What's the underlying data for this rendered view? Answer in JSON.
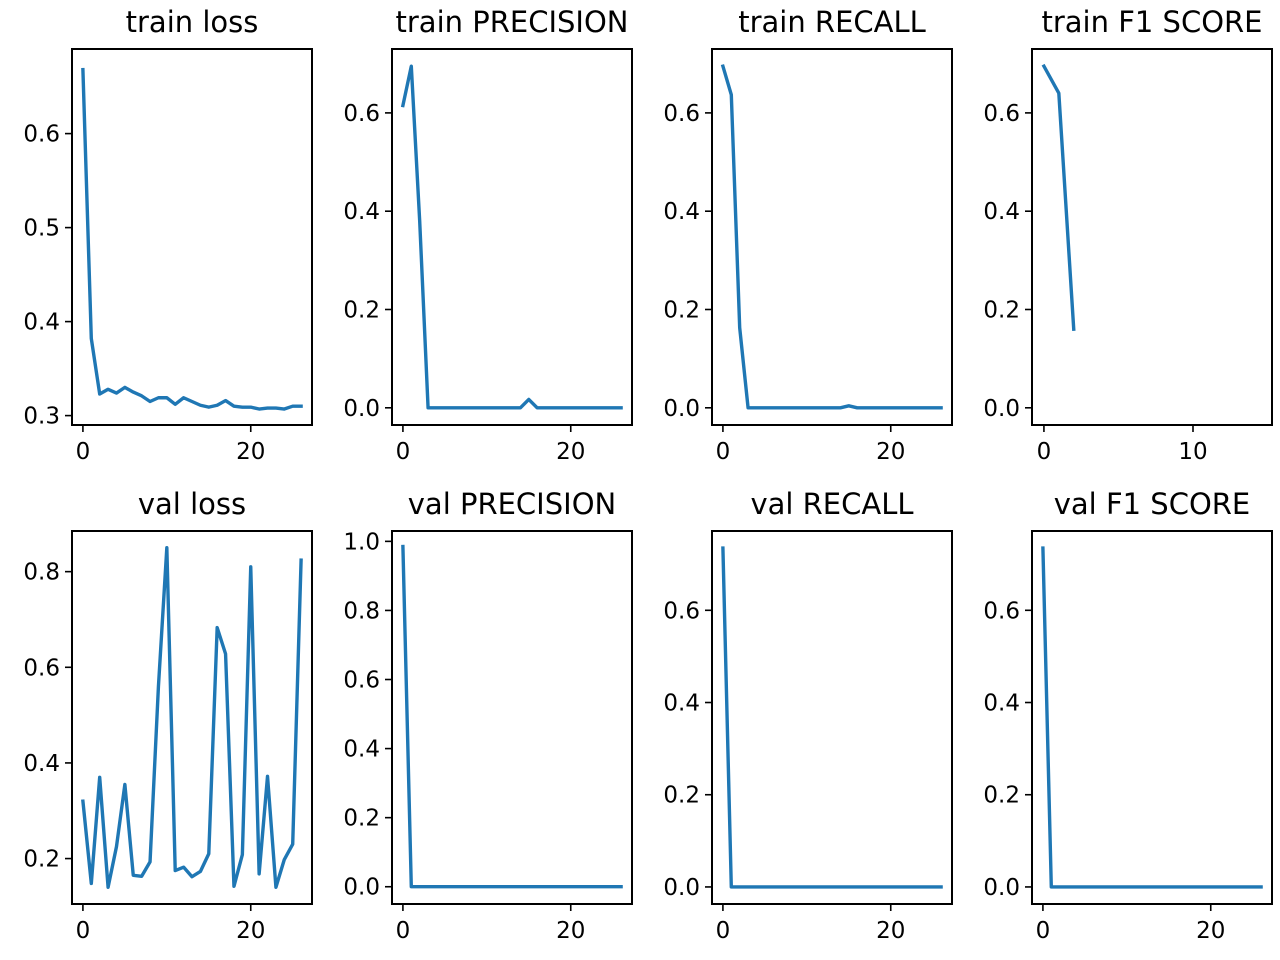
{
  "colors": {
    "line": "#1f77b4",
    "axes": "#000000",
    "background": "#ffffff"
  },
  "chart_data": [
    {
      "type": "line",
      "title": "train loss",
      "xlim": [
        -1.3,
        27.3
      ],
      "ylim": [
        0.29,
        0.69
      ],
      "xticks": [
        0,
        20
      ],
      "xtick_labels": [
        "0",
        "20"
      ],
      "yticks": [
        0.3,
        0.4,
        0.5,
        0.6
      ],
      "ytick_labels": [
        "0.3",
        "0.4",
        "0.5",
        "0.6"
      ],
      "series": [
        {
          "x": [
            0,
            1,
            2,
            3,
            4,
            5,
            6,
            7,
            8,
            9,
            10,
            11,
            12,
            13,
            14,
            15,
            16,
            17,
            18,
            19,
            20,
            21,
            22,
            23,
            24,
            25,
            26
          ],
          "values": [
            0.668,
            0.382,
            0.323,
            0.328,
            0.324,
            0.33,
            0.325,
            0.321,
            0.315,
            0.319,
            0.319,
            0.312,
            0.319,
            0.315,
            0.311,
            0.309,
            0.311,
            0.316,
            0.31,
            0.309,
            0.309,
            0.307,
            0.308,
            0.308,
            0.307,
            0.31,
            0.31
          ]
        }
      ]
    },
    {
      "type": "line",
      "title": "train PRECISION",
      "xlim": [
        -1.3,
        27.3
      ],
      "ylim": [
        -0.035,
        0.73
      ],
      "xticks": [
        0,
        20
      ],
      "xtick_labels": [
        "0",
        "20"
      ],
      "yticks": [
        0.0,
        0.2,
        0.4,
        0.6
      ],
      "ytick_labels": [
        "0.0",
        "0.2",
        "0.4",
        "0.6"
      ],
      "series": [
        {
          "x": [
            0,
            1,
            2,
            3,
            4,
            5,
            6,
            7,
            8,
            9,
            10,
            11,
            12,
            13,
            14,
            15,
            16,
            17,
            18,
            19,
            20,
            21,
            22,
            23,
            24,
            25,
            26
          ],
          "values": [
            0.615,
            0.695,
            0.38,
            0,
            0,
            0,
            0,
            0,
            0,
            0,
            0,
            0,
            0,
            0,
            0,
            0.017,
            0,
            0,
            0,
            0,
            0,
            0,
            0,
            0,
            0,
            0,
            0
          ]
        }
      ]
    },
    {
      "type": "line",
      "title": "train RECALL",
      "xlim": [
        -1.3,
        27.3
      ],
      "ylim": [
        -0.035,
        0.73
      ],
      "xticks": [
        0,
        20
      ],
      "xtick_labels": [
        "0",
        "20"
      ],
      "yticks": [
        0.0,
        0.2,
        0.4,
        0.6
      ],
      "ytick_labels": [
        "0.0",
        "0.2",
        "0.4",
        "0.6"
      ],
      "series": [
        {
          "x": [
            0,
            1,
            2,
            3,
            4,
            5,
            6,
            7,
            8,
            9,
            10,
            11,
            12,
            13,
            14,
            15,
            16,
            17,
            18,
            19,
            20,
            21,
            22,
            23,
            24,
            25,
            26
          ],
          "values": [
            0.695,
            0.637,
            0.163,
            0,
            0,
            0,
            0,
            0,
            0,
            0,
            0,
            0,
            0,
            0,
            0,
            0.004,
            0,
            0,
            0,
            0,
            0,
            0,
            0,
            0,
            0,
            0,
            0
          ]
        }
      ]
    },
    {
      "type": "line",
      "title": "train F1 SCORE",
      "xlim": [
        -0.8,
        15.3
      ],
      "ylim": [
        -0.035,
        0.73
      ],
      "xticks": [
        0,
        10
      ],
      "xtick_labels": [
        "0",
        "10"
      ],
      "yticks": [
        0.0,
        0.2,
        0.4,
        0.6
      ],
      "ytick_labels": [
        "0.0",
        "0.2",
        "0.4",
        "0.6"
      ],
      "series": [
        {
          "x": [
            0,
            1,
            2
          ],
          "values": [
            0.695,
            0.64,
            0.16
          ]
        }
      ]
    },
    {
      "type": "line",
      "title": "val loss",
      "xlim": [
        -1.3,
        27.3
      ],
      "ylim": [
        0.105,
        0.885
      ],
      "xticks": [
        0,
        20
      ],
      "xtick_labels": [
        "0",
        "20"
      ],
      "yticks": [
        0.2,
        0.4,
        0.6,
        0.8
      ],
      "ytick_labels": [
        "0.2",
        "0.4",
        "0.6",
        "0.8"
      ],
      "series": [
        {
          "x": [
            0,
            1,
            2,
            3,
            4,
            5,
            6,
            7,
            8,
            9,
            10,
            11,
            12,
            13,
            14,
            15,
            16,
            17,
            18,
            19,
            20,
            21,
            22,
            23,
            24,
            25,
            26
          ],
          "values": [
            0.32,
            0.148,
            0.37,
            0.14,
            0.225,
            0.355,
            0.165,
            0.163,
            0.193,
            0.56,
            0.85,
            0.175,
            0.182,
            0.162,
            0.173,
            0.21,
            0.683,
            0.628,
            0.142,
            0.208,
            0.81,
            0.168,
            0.372,
            0.14,
            0.198,
            0.23,
            0.824
          ]
        }
      ]
    },
    {
      "type": "line",
      "title": "val PRECISION",
      "xlim": [
        -1.3,
        27.3
      ],
      "ylim": [
        -0.05,
        1.03
      ],
      "xticks": [
        0,
        20
      ],
      "xtick_labels": [
        "0",
        "20"
      ],
      "yticks": [
        0.0,
        0.2,
        0.4,
        0.6,
        0.8,
        1.0
      ],
      "ytick_labels": [
        "0.0",
        "0.2",
        "0.4",
        "0.6",
        "0.8",
        "1.0"
      ],
      "series": [
        {
          "x": [
            0,
            1,
            2,
            3,
            4,
            5,
            6,
            7,
            8,
            9,
            10,
            11,
            12,
            13,
            14,
            15,
            16,
            17,
            18,
            19,
            20,
            21,
            22,
            23,
            24,
            25,
            26
          ],
          "values": [
            0.985,
            0,
            0,
            0,
            0,
            0,
            0,
            0,
            0,
            0,
            0,
            0,
            0,
            0,
            0,
            0,
            0,
            0,
            0,
            0,
            0,
            0,
            0,
            0,
            0,
            0,
            0
          ]
        }
      ]
    },
    {
      "type": "line",
      "title": "val RECALL",
      "xlim": [
        -1.3,
        27.3
      ],
      "ylim": [
        -0.037,
        0.772
      ],
      "xticks": [
        0,
        20
      ],
      "xtick_labels": [
        "0",
        "20"
      ],
      "yticks": [
        0.0,
        0.2,
        0.4,
        0.6
      ],
      "ytick_labels": [
        "0.0",
        "0.2",
        "0.4",
        "0.6"
      ],
      "series": [
        {
          "x": [
            0,
            1,
            2,
            3,
            4,
            5,
            6,
            7,
            8,
            9,
            10,
            11,
            12,
            13,
            14,
            15,
            16,
            17,
            18,
            19,
            20,
            21,
            22,
            23,
            24,
            25,
            26
          ],
          "values": [
            0.735,
            0,
            0,
            0,
            0,
            0,
            0,
            0,
            0,
            0,
            0,
            0,
            0,
            0,
            0,
            0,
            0,
            0,
            0,
            0,
            0,
            0,
            0,
            0,
            0,
            0,
            0
          ]
        }
      ]
    },
    {
      "type": "line",
      "title": "val F1 SCORE",
      "xlim": [
        -1.3,
        27.3
      ],
      "ylim": [
        -0.037,
        0.772
      ],
      "xticks": [
        0,
        20
      ],
      "xtick_labels": [
        "0",
        "20"
      ],
      "yticks": [
        0.0,
        0.2,
        0.4,
        0.6
      ],
      "ytick_labels": [
        "0.0",
        "0.2",
        "0.4",
        "0.6"
      ],
      "series": [
        {
          "x": [
            0,
            1,
            2,
            3,
            4,
            5,
            6,
            7,
            8,
            9,
            10,
            11,
            12,
            13,
            14,
            15,
            16,
            17,
            18,
            19,
            20,
            21,
            22,
            23,
            24,
            25,
            26
          ],
          "values": [
            0.735,
            0,
            0,
            0,
            0,
            0,
            0,
            0,
            0,
            0,
            0,
            0,
            0,
            0,
            0,
            0,
            0,
            0,
            0,
            0,
            0,
            0,
            0,
            0,
            0,
            0,
            0
          ]
        }
      ]
    }
  ]
}
